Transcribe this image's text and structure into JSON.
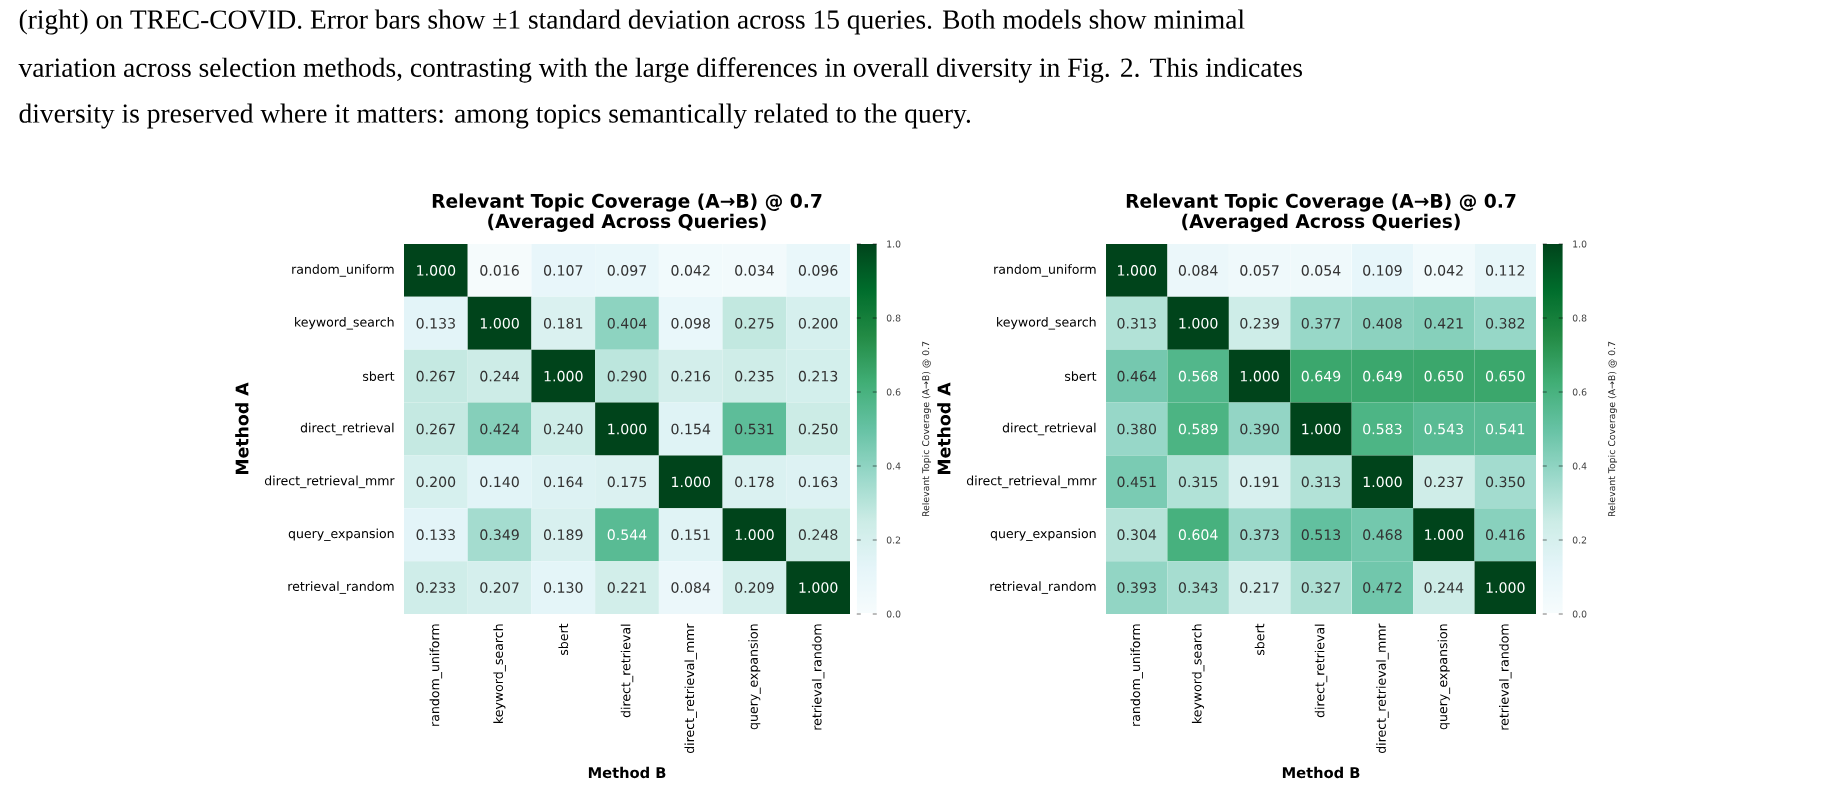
{
  "chart_data": [
    {
      "type": "heatmap",
      "title": "Relevant Topic Coverage (A→B) @ 0.7",
      "subtitle": "(Averaged Across Queries)",
      "xlabel": "Method B",
      "ylabel": "Method A",
      "clabel": "Relevant Topic Coverage (A→B) @ 0.7",
      "annotations": [
        "(right) on TREC-COVID. Error bars show ±1 standard deviation across 15 queries. Both models show minimal",
        "variation across selection methods, contrasting with the large differences in overall diversity in Fig. 2. This indicates",
        "diversity is preserved where it matters: among topics semantically related to the query."
      ],
      "categories": [
        "random_uniform",
        "keyword_search",
        "sbert",
        "direct_retrieval",
        "direct_retrieval_mmr",
        "query_expansion",
        "retrieval_random"
      ],
      "y_categories": [
        "random_uniform",
        "keyword_search",
        "sbert",
        "direct_retrieval",
        "direct_retrieval_mmr",
        "query_expansion",
        "retrieval_random"
      ],
      "cells": [
        [
          1.0,
          0.016,
          0.107,
          0.097,
          0.042,
          0.034,
          0.096
        ],
        [
          0.133,
          1.0,
          0.181,
          0.404,
          0.098,
          0.275,
          0.2
        ],
        [
          0.267,
          0.244,
          1.0,
          0.29,
          0.216,
          0.235,
          0.213
        ],
        [
          0.267,
          0.424,
          0.24,
          1.0,
          0.154,
          0.531,
          0.25
        ],
        [
          0.2,
          0.14,
          0.164,
          0.175,
          1.0,
          0.178,
          0.163
        ],
        [
          0.133,
          0.349,
          0.189,
          0.544,
          0.151,
          1.0,
          0.248
        ],
        [
          0.233,
          0.207,
          0.13,
          0.221,
          0.084,
          0.209,
          1.0
        ]
      ],
      "cell_labels": [
        [
          "1.000",
          "0.016",
          "0.107",
          "0.097",
          "0.042",
          "0.034",
          "0.096"
        ],
        [
          "0.133",
          "1.000",
          "0.181",
          "0.404",
          "0.098",
          "0.275",
          "0.200"
        ],
        [
          "0.267",
          "0.244",
          "1.000",
          "0.290",
          "0.216",
          "0.235",
          "0.213"
        ],
        [
          "0.267",
          "0.424",
          "0.240",
          "1.000",
          "0.154",
          "0.531",
          "0.250"
        ],
        [
          "0.200",
          "0.140",
          "0.164",
          "0.175",
          "1.000",
          "0.178",
          "0.163"
        ],
        [
          "0.133",
          "0.349",
          "0.189",
          "0.544",
          "0.151",
          "1.000",
          "0.248"
        ],
        [
          "0.233",
          "0.207",
          "0.130",
          "0.221",
          "0.084",
          "0.209",
          "1.000"
        ]
      ],
      "clim": [
        0,
        1
      ],
      "cticks": [
        {
          "value": 0,
          "label": "0.0"
        },
        {
          "value": 0.2,
          "label": "0.2"
        },
        {
          "value": 0.4,
          "label": "0.4"
        },
        {
          "value": 0.6,
          "label": "0.6"
        },
        {
          "value": 0.8,
          "label": "0.8"
        },
        {
          "value": 1,
          "label": "1.0"
        }
      ]
    },
    {
      "type": "heatmap",
      "title": "Relevant Topic Coverage (A→B) @ 0.7",
      "subtitle": "(Averaged Across Queries)",
      "xlabel": "Method B",
      "ylabel": "Method A",
      "clabel": "Relevant Topic Coverage (A→B) @ 0.7",
      "categories": [
        "random_uniform",
        "keyword_search",
        "sbert",
        "direct_retrieval",
        "direct_retrieval_mmr",
        "query_expansion",
        "retrieval_random"
      ],
      "y_categories": [
        "random_uniform",
        "keyword_search",
        "sbert",
        "direct_retrieval",
        "direct_retrieval_mmr",
        "query_expansion",
        "retrieval_random"
      ],
      "cells": [
        [
          1.0,
          0.084,
          0.057,
          0.054,
          0.109,
          0.042,
          0.112
        ],
        [
          0.313,
          1.0,
          0.239,
          0.377,
          0.408,
          0.421,
          0.382
        ],
        [
          0.464,
          0.568,
          1.0,
          0.649,
          0.649,
          0.65,
          0.65
        ],
        [
          0.38,
          0.589,
          0.39,
          1.0,
          0.583,
          0.543,
          0.541
        ],
        [
          0.451,
          0.315,
          0.191,
          0.313,
          1.0,
          0.237,
          0.35
        ],
        [
          0.304,
          0.604,
          0.373,
          0.513,
          0.468,
          1.0,
          0.416
        ],
        [
          0.393,
          0.343,
          0.217,
          0.327,
          0.472,
          0.244,
          1.0
        ]
      ],
      "cell_labels": [
        [
          "1.000",
          "0.084",
          "0.057",
          "0.054",
          "0.109",
          "0.042",
          "0.112"
        ],
        [
          "0.313",
          "1.000",
          "0.239",
          "0.377",
          "0.408",
          "0.421",
          "0.382"
        ],
        [
          "0.464",
          "0.568",
          "1.000",
          "0.649",
          "0.649",
          "0.650",
          "0.650"
        ],
        [
          "0.380",
          "0.589",
          "0.390",
          "1.000",
          "0.583",
          "0.543",
          "0.541"
        ],
        [
          "0.451",
          "0.315",
          "0.191",
          "0.313",
          "1.000",
          "0.237",
          "0.350"
        ],
        [
          "0.304",
          "0.604",
          "0.373",
          "0.513",
          "0.468",
          "1.000",
          "0.416"
        ],
        [
          "0.393",
          "0.343",
          "0.217",
          "0.327",
          "0.472",
          "0.244",
          "1.000"
        ]
      ],
      "clim": [
        0,
        1
      ],
      "cticks": [
        {
          "value": 0,
          "label": "0.0"
        },
        {
          "value": 0.2,
          "label": "0.2"
        },
        {
          "value": 0.4,
          "label": "0.4"
        },
        {
          "value": 0.6,
          "label": "0.6"
        },
        {
          "value": 0.8,
          "label": "0.8"
        },
        {
          "value": 1,
          "label": "1.0"
        }
      ]
    }
  ]
}
